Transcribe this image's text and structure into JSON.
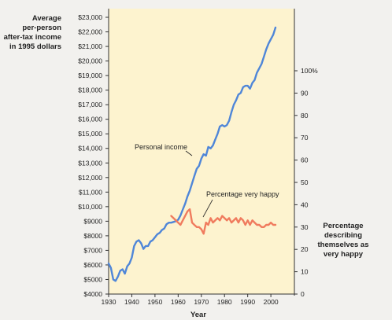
{
  "chart_data": {
    "type": "line",
    "title": "",
    "xlabel": "Year",
    "ylabel_left": [
      "Average",
      "per-person",
      "after-tax income",
      "in 1995 dollars"
    ],
    "ylabel_right": [
      "Percentage",
      "describing",
      "themselves as",
      "very happy"
    ],
    "xlim": [
      1930,
      2005
    ],
    "ylim_left": [
      4000,
      23000
    ],
    "ylim_right": [
      0,
      100
    ],
    "x_ticks": [
      "1930",
      "1940",
      "1950",
      "1960",
      "1970",
      "1980",
      "1990",
      "2000"
    ],
    "y_ticks_left": [
      "$4000",
      "$5000",
      "$6000",
      "$7000",
      "$8000",
      "$9000",
      "$10,000",
      "$11,000",
      "$12,000",
      "$13,000",
      "$14,000",
      "$15,000",
      "$16,000",
      "$17,000",
      "$18,000",
      "$19,000",
      "$20,000",
      "$21,000",
      "$22,000",
      "$23,000"
    ],
    "y_ticks_right": [
      "0",
      "10",
      "20",
      "30",
      "40",
      "50",
      "60",
      "70",
      "80",
      "90",
      "100%"
    ],
    "background_color": "#fdf3cf",
    "grid": false,
    "series": [
      {
        "name": "Personal income",
        "axis": "left",
        "color": "#4f86d8",
        "x": [
          1930,
          1931,
          1932,
          1933,
          1934,
          1935,
          1936,
          1937,
          1938,
          1939,
          1940,
          1941,
          1942,
          1943,
          1944,
          1945,
          1946,
          1947,
          1948,
          1949,
          1950,
          1951,
          1952,
          1953,
          1954,
          1955,
          1956,
          1957,
          1958,
          1959,
          1960,
          1961,
          1962,
          1963,
          1964,
          1965,
          1966,
          1967,
          1968,
          1969,
          1970,
          1971,
          1972,
          1973,
          1974,
          1975,
          1976,
          1977,
          1978,
          1979,
          1980,
          1981,
          1982,
          1983,
          1984,
          1985,
          1986,
          1987,
          1988,
          1989,
          1990,
          1991,
          1992,
          1993,
          1994,
          1995,
          1996,
          1997,
          1998,
          1999,
          2000,
          2001,
          2002
        ],
        "values": [
          6100,
          5800,
          5000,
          4900,
          5200,
          5600,
          5700,
          5400,
          5900,
          6100,
          6500,
          7300,
          7600,
          7700,
          7500,
          7100,
          7300,
          7300,
          7600,
          7700,
          7900,
          8100,
          8200,
          8400,
          8500,
          8800,
          8900,
          8900,
          8950,
          9000,
          9100,
          9400,
          9800,
          10200,
          10700,
          11100,
          11600,
          12100,
          12600,
          12800,
          13300,
          13600,
          13500,
          14100,
          14000,
          14200,
          14600,
          15000,
          15500,
          15600,
          15500,
          15600,
          15900,
          16500,
          17000,
          17300,
          17700,
          17800,
          18200,
          18300,
          18300,
          18100,
          18500,
          18700,
          19200,
          19500,
          19800,
          20300,
          20800,
          21200,
          21500,
          21800,
          22300
        ]
      },
      {
        "name": "Percentage very happy",
        "axis": "right",
        "color": "#f07b5e",
        "x": [
          1957,
          1958,
          1959,
          1960,
          1961,
          1962,
          1963,
          1964,
          1965,
          1966,
          1967,
          1968,
          1969,
          1970,
          1971,
          1972,
          1973,
          1974,
          1975,
          1976,
          1977,
          1978,
          1979,
          1980,
          1981,
          1982,
          1983,
          1984,
          1985,
          1986,
          1987,
          1988,
          1989,
          1990,
          1991,
          1992,
          1993,
          1994,
          1995,
          1996,
          1997,
          1998,
          1999,
          2000,
          2001,
          2002
        ],
        "values": [
          35,
          34,
          33,
          32,
          31,
          33,
          35,
          37,
          38,
          32,
          31,
          30,
          30,
          29,
          27,
          32,
          31,
          34,
          32,
          33,
          34,
          33,
          35,
          34,
          33,
          34,
          32,
          33,
          34,
          32,
          34,
          33,
          31,
          33,
          31,
          33,
          32,
          31,
          31,
          30,
          30,
          31,
          31,
          32,
          31,
          31
        ]
      }
    ],
    "annotations": [
      "Personal income",
      "Percentage very happy"
    ]
  }
}
